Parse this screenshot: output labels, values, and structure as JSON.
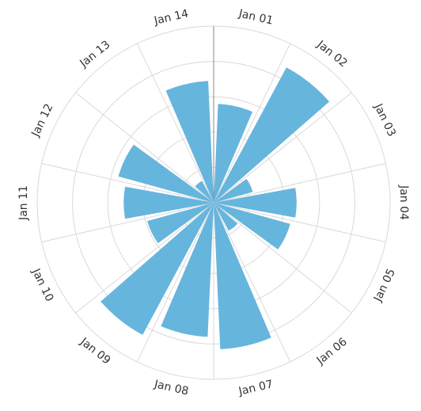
{
  "chart_data": {
    "type": "bar",
    "subtype": "polar-column",
    "categories": [
      "Jan 01",
      "Jan 02",
      "Jan 03",
      "Jan 04",
      "Jan 05",
      "Jan 06",
      "Jan 07",
      "Jan 08",
      "Jan 09",
      "Jan 10",
      "Jan 11",
      "Jan 12",
      "Jan 13",
      "Jan 14"
    ],
    "values": [
      56,
      87,
      23,
      47,
      45,
      18,
      83,
      76,
      85,
      39,
      51,
      56,
      14,
      69
    ],
    "ylim": [
      0,
      100
    ],
    "grid": true,
    "color": "#66b5dd"
  }
}
